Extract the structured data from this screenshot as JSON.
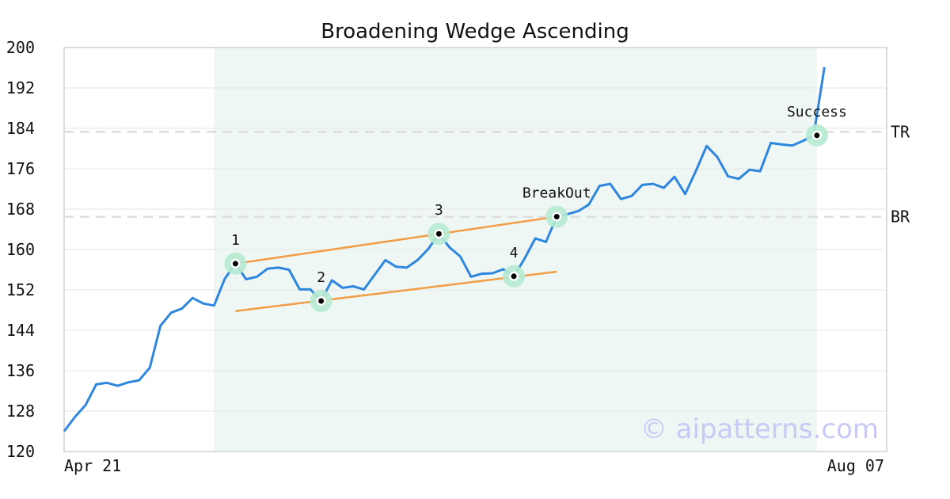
{
  "chart_data": {
    "type": "line",
    "title": "Broadening Wedge Ascending",
    "ylim": [
      120,
      200
    ],
    "yticks": [
      120,
      128,
      136,
      144,
      152,
      160,
      168,
      176,
      184,
      192,
      200
    ],
    "x_range": [
      0,
      76
    ],
    "xtick_labels": [
      {
        "x": 0,
        "label": "Apr 21"
      },
      {
        "x": 76,
        "label": "Aug 07"
      }
    ],
    "grid": true,
    "pattern_region": {
      "x_start": 14,
      "x_end": 70.3
    },
    "series": [
      {
        "color": "#2e86de",
        "values": [
          [
            0,
            124.0
          ],
          [
            1,
            126.8
          ],
          [
            2,
            129.2
          ],
          [
            3,
            133.3
          ],
          [
            4,
            133.6
          ],
          [
            5,
            133.0
          ],
          [
            6,
            133.7
          ],
          [
            7,
            134.1
          ],
          [
            8,
            136.6
          ],
          [
            9,
            144.9
          ],
          [
            10,
            147.5
          ],
          [
            11,
            148.3
          ],
          [
            12,
            150.4
          ],
          [
            13,
            149.3
          ],
          [
            14,
            148.9
          ],
          [
            15,
            154.2
          ],
          [
            16,
            157.2
          ],
          [
            17,
            154.1
          ],
          [
            18,
            154.6
          ],
          [
            19,
            156.2
          ],
          [
            20,
            156.4
          ],
          [
            21,
            156.0
          ],
          [
            22,
            152.1
          ],
          [
            23,
            152.1
          ],
          [
            24,
            149.8
          ],
          [
            25,
            153.9
          ],
          [
            26,
            152.4
          ],
          [
            27,
            152.7
          ],
          [
            28,
            152.1
          ],
          [
            29,
            155.0
          ],
          [
            30,
            157.9
          ],
          [
            31,
            156.6
          ],
          [
            32,
            156.4
          ],
          [
            33,
            157.9
          ],
          [
            34,
            160.1
          ],
          [
            35,
            163.1
          ],
          [
            36,
            160.4
          ],
          [
            37,
            158.6
          ],
          [
            38,
            154.6
          ],
          [
            39,
            155.2
          ],
          [
            40,
            155.3
          ],
          [
            41,
            156.1
          ],
          [
            42,
            154.7
          ],
          [
            43,
            158.2
          ],
          [
            44,
            162.2
          ],
          [
            45,
            161.5
          ],
          [
            46,
            166.5
          ],
          [
            47,
            167.0
          ],
          [
            48,
            167.6
          ],
          [
            49,
            168.9
          ],
          [
            50,
            172.6
          ],
          [
            51,
            173.0
          ],
          [
            52,
            170.0
          ],
          [
            53,
            170.6
          ],
          [
            54,
            172.8
          ],
          [
            55,
            173.0
          ],
          [
            56,
            172.2
          ],
          [
            57,
            174.4
          ],
          [
            58,
            171.0
          ],
          [
            59,
            175.6
          ],
          [
            60,
            180.5
          ],
          [
            61,
            178.3
          ],
          [
            62,
            174.5
          ],
          [
            63,
            174.0
          ],
          [
            64,
            175.8
          ],
          [
            65,
            175.5
          ],
          [
            66,
            181.1
          ],
          [
            67,
            180.8
          ],
          [
            68,
            180.6
          ],
          [
            69,
            181.5
          ],
          [
            70,
            182.6
          ],
          [
            71,
            196.1
          ]
        ]
      }
    ],
    "trendlines": [
      {
        "color": "#f39c46",
        "points": [
          [
            16,
            157.2
          ],
          [
            46,
            166.5
          ]
        ]
      },
      {
        "color": "#f39c46",
        "points": [
          [
            16,
            147.8
          ],
          [
            46,
            155.6
          ]
        ]
      }
    ],
    "markers": [
      {
        "x": 16,
        "y": 157.2,
        "label": "1"
      },
      {
        "x": 24,
        "y": 149.8,
        "label": "2"
      },
      {
        "x": 35,
        "y": 163.1,
        "label": "3"
      },
      {
        "x": 42,
        "y": 154.7,
        "label": "4"
      },
      {
        "x": 46,
        "y": 166.5,
        "label": "BreakOut"
      },
      {
        "x": 70.3,
        "y": 182.6,
        "label": "Success"
      }
    ],
    "levels": [
      {
        "y": 183.3,
        "label": "TR"
      },
      {
        "y": 166.5,
        "label": "BR"
      }
    ]
  },
  "watermark": "© aipatterns.com",
  "colors": {
    "line": "#2e86de",
    "trend": "#f39c46",
    "highlight": "#eef7f3",
    "marker_halo": "#b6ead2",
    "level": "#dddddd"
  }
}
